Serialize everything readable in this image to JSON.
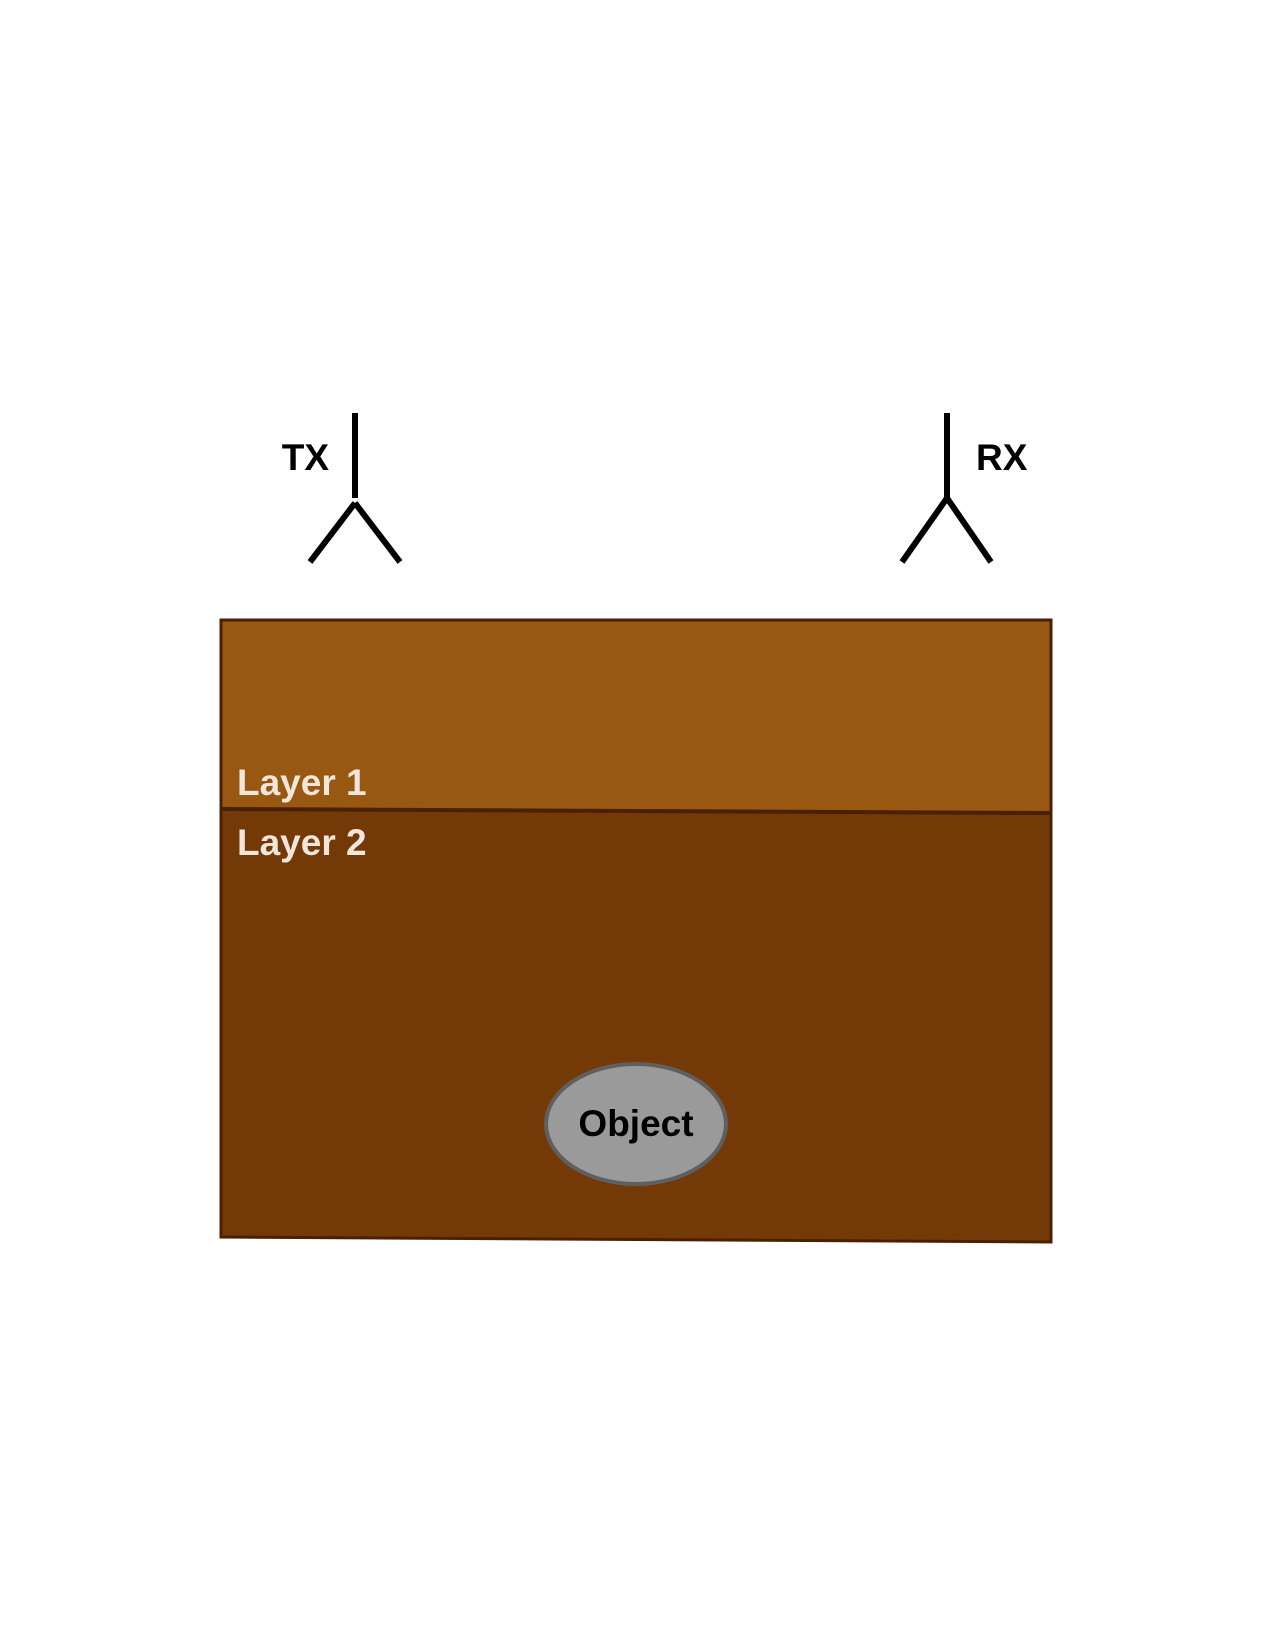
{
  "antennas": {
    "transmitter": {
      "label": "TX",
      "icon": "antenna-icon"
    },
    "receiver": {
      "label": "RX",
      "icon": "antenna-icon"
    }
  },
  "layers": [
    {
      "label": "Layer 1",
      "color": "#985811"
    },
    {
      "label": "Layer 2",
      "color": "#733A07"
    }
  ],
  "object": {
    "label": "Object",
    "fill": "#9A9A9A",
    "stroke": "#5F5F5F"
  },
  "colors": {
    "layer_border": "#4A2003",
    "layer_text": "#F2E6DA",
    "antenna": "#000000"
  }
}
